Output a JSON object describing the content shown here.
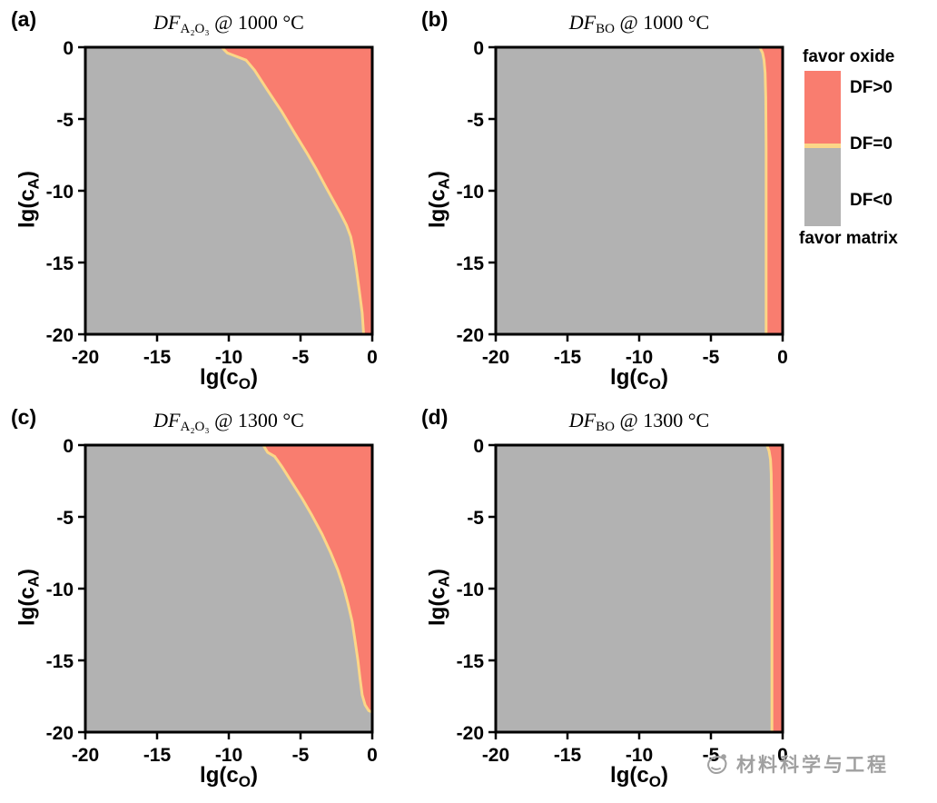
{
  "colors": {
    "favor_oxide_red": "#F97D6F",
    "boundary_yellow": "#FBD687",
    "favor_matrix_gray": "#B2B2B2",
    "frame_black": "#000000",
    "watermark_gray": "#A0A0A0"
  },
  "legend": {
    "favor_oxide": "favor oxide",
    "df_gt0": "DF>0",
    "df_eq0": "DF=0",
    "df_lt0": "DF<0",
    "favor_matrix": "favor matrix"
  },
  "watermark": {
    "text": "材料科学与工程"
  },
  "chart_data": [
    {
      "type": "area",
      "panel_label": "(a)",
      "title": {
        "italic": "DF",
        "sub": "A₂O₃",
        "rest": " @ 1000 °C"
      },
      "xlabel": "lg(c_O)",
      "ylabel": "lg(c_A)",
      "xlim": [
        -20,
        0
      ],
      "ylim": [
        -20,
        0
      ],
      "xticks": [
        -20,
        -15,
        -10,
        -5,
        0
      ],
      "yticks": [
        0,
        -5,
        -10,
        -15,
        -20
      ],
      "regions": {
        "left_of_boundary": "DF<0 favor matrix (gray)",
        "right_of_boundary": "DF>0 favor oxide (red)",
        "boundary": "DF=0 (yellow line)"
      },
      "boundary_df0": [
        [
          -10.5,
          0
        ],
        [
          -10.1,
          -0.4
        ],
        [
          -8.8,
          -0.9
        ],
        [
          -8.2,
          -1.6
        ],
        [
          -7.3,
          -3.0
        ],
        [
          -6.3,
          -4.5
        ],
        [
          -5.4,
          -6.0
        ],
        [
          -4.6,
          -7.3
        ],
        [
          -3.9,
          -8.5
        ],
        [
          -3.2,
          -9.8
        ],
        [
          -2.7,
          -10.7
        ],
        [
          -2.2,
          -11.6
        ],
        [
          -1.8,
          -12.4
        ],
        [
          -1.5,
          -13.2
        ],
        [
          -1.3,
          -14.2
        ],
        [
          -1.1,
          -15.5
        ],
        [
          -0.9,
          -17.0
        ],
        [
          -0.7,
          -18.5
        ],
        [
          -0.6,
          -20
        ]
      ]
    },
    {
      "type": "area",
      "panel_label": "(b)",
      "title": {
        "italic": "DF",
        "sub": "BO",
        "rest": " @ 1000 °C"
      },
      "xlabel": "lg(c_O)",
      "ylabel": "lg(c_A)",
      "xlim": [
        -20,
        0
      ],
      "ylim": [
        -20,
        0
      ],
      "xticks": [
        -20,
        -15,
        -10,
        -5,
        0
      ],
      "yticks": [
        0,
        -5,
        -10,
        -15,
        -20
      ],
      "regions": {
        "left_of_boundary": "DF<0 favor matrix (gray)",
        "right_of_boundary": "DF>0 favor oxide (red)",
        "boundary": "DF=0 (yellow line)"
      },
      "boundary_df0": [
        [
          -1.6,
          0
        ],
        [
          -1.4,
          -0.4
        ],
        [
          -1.3,
          -0.9
        ],
        [
          -1.22,
          -1.8
        ],
        [
          -1.18,
          -3.5
        ],
        [
          -1.15,
          -7.0
        ],
        [
          -1.15,
          -20
        ]
      ]
    },
    {
      "type": "area",
      "panel_label": "(c)",
      "title": {
        "italic": "DF",
        "sub": "A₂O₃",
        "rest": " @ 1300 °C"
      },
      "xlabel": "lg(c_O)",
      "ylabel": "lg(c_A)",
      "xlim": [
        -20,
        0
      ],
      "ylim": [
        -20,
        0
      ],
      "xticks": [
        -20,
        -15,
        -10,
        -5,
        0
      ],
      "yticks": [
        0,
        -5,
        -10,
        -15,
        -20
      ],
      "regions": {
        "left_of_boundary": "DF<0 favor matrix (gray)",
        "right_of_boundary": "DF>0 favor oxide (red)",
        "boundary": "DF=0 (yellow line)"
      },
      "boundary_df0": [
        [
          -7.6,
          0
        ],
        [
          -7.3,
          -0.5
        ],
        [
          -6.8,
          -0.8
        ],
        [
          -6.3,
          -1.5
        ],
        [
          -5.6,
          -2.6
        ],
        [
          -4.9,
          -3.7
        ],
        [
          -4.2,
          -4.9
        ],
        [
          -3.5,
          -6.2
        ],
        [
          -2.9,
          -7.5
        ],
        [
          -2.4,
          -8.7
        ],
        [
          -2.0,
          -9.9
        ],
        [
          -1.7,
          -11.0
        ],
        [
          -1.4,
          -12.3
        ],
        [
          -1.2,
          -13.6
        ],
        [
          -1.0,
          -15.0
        ],
        [
          -0.85,
          -16.3
        ],
        [
          -0.7,
          -17.4
        ],
        [
          -0.5,
          -18.1
        ],
        [
          -0.25,
          -18.5
        ],
        [
          0,
          -18.6
        ]
      ]
    },
    {
      "type": "area",
      "panel_label": "(d)",
      "title": {
        "italic": "DF",
        "sub": "BO",
        "rest": " @ 1300 °C"
      },
      "xlabel": "lg(c_O)",
      "ylabel": "lg(c_A)",
      "xlim": [
        -20,
        0
      ],
      "ylim": [
        -20,
        0
      ],
      "xticks": [
        -20,
        -15,
        -10,
        -5,
        0
      ],
      "yticks": [
        0,
        -5,
        -10,
        -15,
        -20
      ],
      "regions": {
        "left_of_boundary": "DF<0 favor matrix (gray)",
        "right_of_boundary": "DF>0 favor oxide (red)",
        "boundary": "DF=0 (yellow line)"
      },
      "boundary_df0": [
        [
          -1.1,
          0
        ],
        [
          -0.95,
          -0.4
        ],
        [
          -0.85,
          -1.0
        ],
        [
          -0.8,
          -2.0
        ],
        [
          -0.77,
          -4.0
        ],
        [
          -0.75,
          -8.0
        ],
        [
          -0.75,
          -20
        ]
      ]
    }
  ]
}
